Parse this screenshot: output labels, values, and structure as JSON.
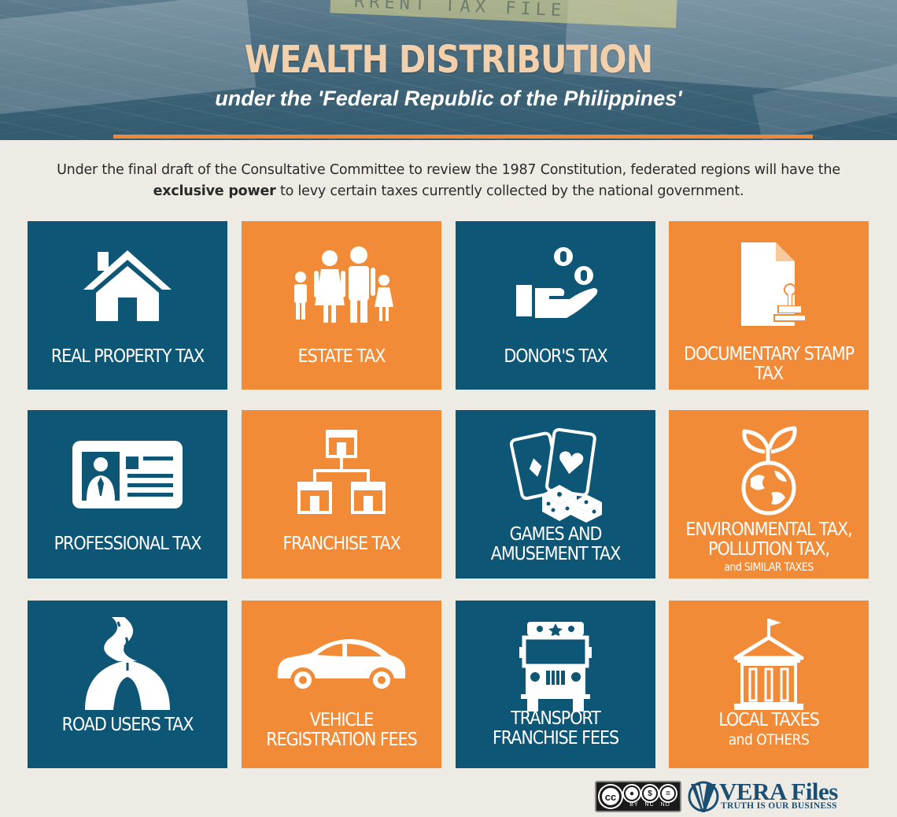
{
  "header": {
    "title": "WEALTH DISTRIBUTION",
    "subtitle": "under the 'Federal Republic of the Philippines'",
    "background_text": "RRENT TAX FILE"
  },
  "intro": {
    "before": "Under the final draft of the Consultative Committee to review the 1987 Constitution, federated regions will have the ",
    "emphasis": "exclusive power",
    "after": " to levy certain taxes currently collected by the national government."
  },
  "tiles": [
    {
      "label": "REAL PROPERTY TAX",
      "icon": "house-icon",
      "color": "#0e5675"
    },
    {
      "label": "ESTATE TAX",
      "icon": "family-icon",
      "color": "#f28b38"
    },
    {
      "label": "DONOR'S TAX",
      "icon": "hand-coins-icon",
      "color": "#0e5675"
    },
    {
      "label": "DOCUMENTARY STAMP TAX",
      "icon": "document-stamp-icon",
      "color": "#f28b38"
    },
    {
      "label": "PROFESSIONAL TAX",
      "icon": "id-card-icon",
      "color": "#0e5675"
    },
    {
      "label": "FRANCHISE TAX",
      "icon": "franchise-stores-icon",
      "color": "#f28b38"
    },
    {
      "label": "GAMES AND AMUSEMENT TAX",
      "icon": "cards-dice-icon",
      "color": "#0e5675"
    },
    {
      "label": "ENVIRONMENTAL TAX, POLLUTION TAX,",
      "sublabel": "and SIMILAR TAXES",
      "icon": "globe-plant-icon",
      "color": "#f28b38"
    },
    {
      "label": "ROAD USERS TAX",
      "icon": "road-icon",
      "color": "#0e5675"
    },
    {
      "label": "VEHICLE REGISTRATION FEES",
      "icon": "car-icon",
      "color": "#f28b38"
    },
    {
      "label": "TRANSPORT FRANCHISE FEES",
      "icon": "jeepney-icon",
      "color": "#0e5675"
    },
    {
      "label": "LOCAL TAXES",
      "sublabel": "and OTHERS",
      "icon": "town-hall-icon",
      "color": "#f28b38"
    }
  ],
  "footer": {
    "license": {
      "cc": "cc",
      "terms": [
        "BY",
        "NC",
        "ND"
      ]
    },
    "brand": "VERA Files",
    "tagline": "TRUTH IS OUR BUSINESS"
  },
  "colors": {
    "blue": "#0e5675",
    "orange": "#f28b38",
    "title": "#f2d0ac",
    "background": "#eeebe5"
  }
}
